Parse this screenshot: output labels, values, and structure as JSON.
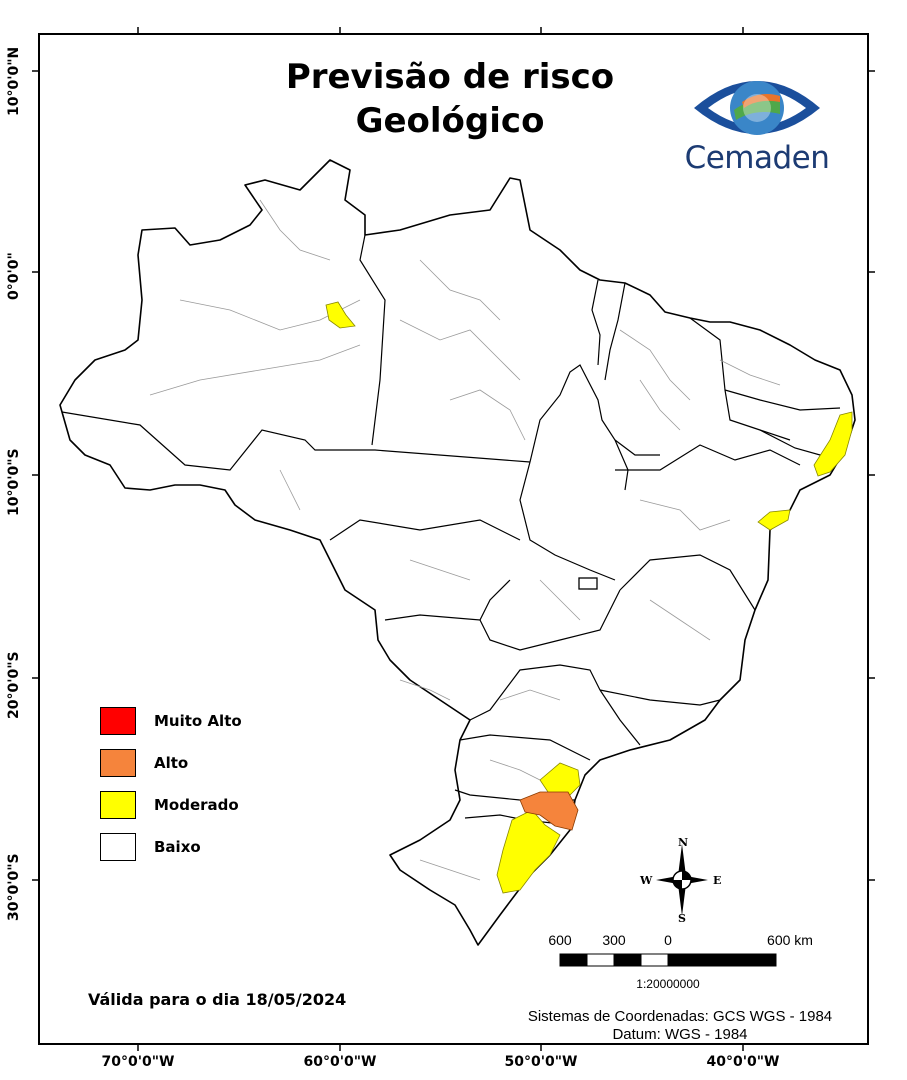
{
  "title": {
    "line1": "Previsão de risco",
    "line2": "Geológico"
  },
  "logo": {
    "text": "Cemaden",
    "icon": "eye-logo-icon",
    "colors": {
      "blue": "#1b4f9c",
      "green": "#4fa84a",
      "orange": "#e8742a"
    }
  },
  "legend": [
    {
      "label": "Muito Alto",
      "color": "#ff0000"
    },
    {
      "label": "Alto",
      "color": "#f5843c"
    },
    {
      "label": "Moderado",
      "color": "#ffff00"
    },
    {
      "label": "Baixo",
      "color": "#ffffff"
    }
  ],
  "valid_text": "Válida para o dia 18/05/2024",
  "coordinate_system": {
    "line1": "Sistemas de Coordenadas: GCS WGS - 1984",
    "line2": "Datum: WGS - 1984"
  },
  "axes": {
    "longitude_labels": [
      "70°0'0\"W",
      "60°0'0\"W",
      "50°0'0\"W",
      "40°0'0\"W"
    ],
    "latitude_labels": [
      "10°0'0\"N",
      "0°0'0\"",
      "10°0'0\"S",
      "20°0'0\"S",
      "30°0'0\"S"
    ]
  },
  "scale_bar": {
    "labels": [
      "600",
      "300",
      "0",
      "600 km"
    ],
    "ratio": "1:20000000"
  },
  "compass": {
    "n": "N",
    "s": "S",
    "e": "E",
    "w": "W"
  }
}
